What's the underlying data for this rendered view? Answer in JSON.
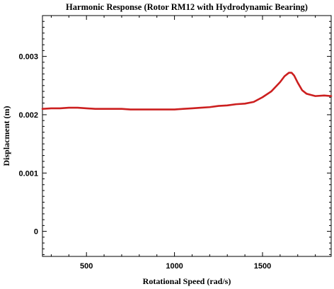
{
  "chart_data": {
    "type": "line",
    "title": "Harmonic Response (Rotor RM12 with Hydrodynamic Bearing)",
    "xlabel": "Rotational Speed (rad/s)",
    "ylabel": "Displacment (m)",
    "xlim": [
      250,
      1890
    ],
    "ylim": [
      -0.00043,
      0.0037
    ],
    "xticks": [
      500,
      1000,
      1500
    ],
    "xtick_labels": [
      "500",
      "1000",
      "1500"
    ],
    "yticks": [
      0,
      0.001,
      0.002,
      0.003
    ],
    "ytick_labels": [
      "0",
      "0.001",
      "0.002",
      "0.003"
    ],
    "grid": false,
    "series": [
      {
        "color": "#cc1f1f",
        "x": [
          250,
          300,
          350,
          400,
          450,
          500,
          550,
          600,
          650,
          700,
          750,
          800,
          850,
          900,
          950,
          1000,
          1050,
          1100,
          1150,
          1200,
          1250,
          1300,
          1350,
          1400,
          1450,
          1500,
          1550,
          1600,
          1625,
          1650,
          1665,
          1680,
          1700,
          1725,
          1750,
          1775,
          1800,
          1850,
          1890
        ],
        "y": [
          0.0021,
          0.00211,
          0.00211,
          0.00212,
          0.00212,
          0.00211,
          0.0021,
          0.0021,
          0.0021,
          0.0021,
          0.00209,
          0.00209,
          0.00209,
          0.00209,
          0.00209,
          0.00209,
          0.0021,
          0.00211,
          0.00212,
          0.00213,
          0.00215,
          0.00216,
          0.00218,
          0.00219,
          0.00222,
          0.0023,
          0.0024,
          0.00256,
          0.00266,
          0.00272,
          0.00272,
          0.00267,
          0.00255,
          0.00242,
          0.00236,
          0.00234,
          0.00232,
          0.00233,
          0.00232
        ]
      }
    ]
  }
}
